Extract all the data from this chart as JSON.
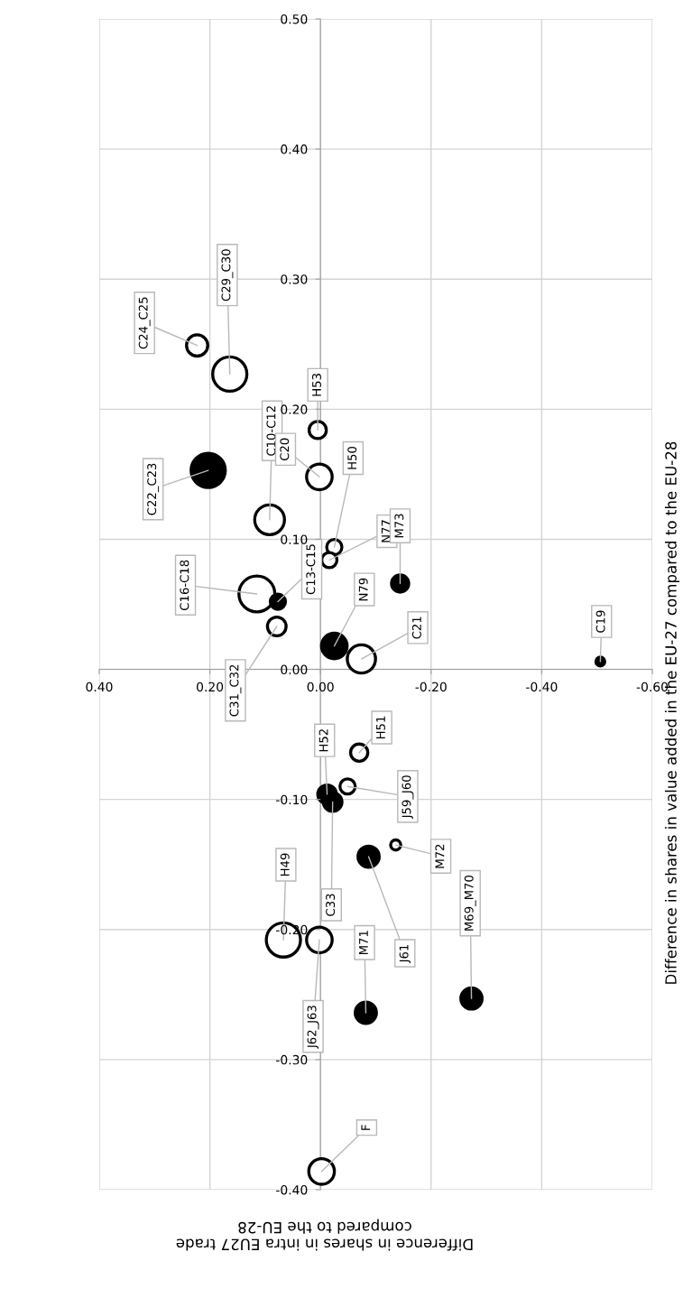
{
  "chart_data": {
    "type": "bubble",
    "xlabel": "Difference in shares in intra EU27 trade\ncompared to the EU-28",
    "ylabel": "Difference in shares in value added in the EU-27 compared to the EU-28",
    "xlim": [
      0.4,
      -0.6
    ],
    "ylim": [
      -0.4,
      0.5
    ],
    "xticks": [
      {
        "value": 0.4,
        "label": "0.40"
      },
      {
        "value": 0.2,
        "label": "0.20"
      },
      {
        "value": 0,
        "label": "0.00"
      },
      {
        "value": -0.2,
        "label": "-0.20"
      },
      {
        "value": -0.4,
        "label": "-0.40"
      },
      {
        "value": -0.6,
        "label": "-0.60"
      }
    ],
    "yticks": [
      {
        "value": -0.4,
        "label": "-0.40"
      },
      {
        "value": -0.3,
        "label": "-0.30"
      },
      {
        "value": -0.2,
        "label": "-0.20"
      },
      {
        "value": -0.1,
        "label": "-0.10"
      },
      {
        "value": 0,
        "label": "0.00"
      },
      {
        "value": 0.1,
        "label": "0.10"
      },
      {
        "value": 0.2,
        "label": "0.20"
      },
      {
        "value": 0.3,
        "label": "0.30"
      },
      {
        "value": 0.4,
        "label": "0.40"
      },
      {
        "value": 0.5,
        "label": "0.50"
      }
    ],
    "grid": true,
    "series": [
      {
        "color": "#ffffff",
        "x": [
          0.223,
          0.164,
          0.005,
          0.092,
          0.002,
          -0.025,
          -0.016,
          0.115,
          0.079,
          -0.074,
          -0.07,
          -0.049,
          -0.136,
          0.067,
          0.002,
          -0.002
        ],
        "values": [
          0.249,
          0.227,
          0.184,
          0.115,
          0.148,
          0.094,
          0.084,
          0.058,
          0.033,
          0.008,
          -0.064,
          -0.09,
          -0.135,
          -0.208,
          -0.208,
          -0.386
        ],
        "sizes": [
          0.35,
          0.91,
          0.23,
          0.69,
          0.51,
          0.18,
          0.18,
          1,
          0.27,
          0.62,
          0.23,
          0.18,
          0.08,
          0.91,
          0.51,
          0.51
        ],
        "value_labels": [
          "C24_C25",
          "C29_C30",
          "H53",
          "C10-C12",
          "C20",
          "H50",
          "N77",
          "C16-C18",
          "C31_C32",
          "C21",
          "H51",
          "J59_J60",
          "M72",
          "H49",
          "J62_J63",
          "F"
        ]
      },
      {
        "color": "#000000",
        "x": [
          0.203,
          -0.144,
          0.077,
          -0.025,
          -0.506,
          -0.012,
          -0.022,
          -0.087,
          -0.082,
          -0.273
        ],
        "values": [
          0.153,
          0.066,
          0.052,
          0.018,
          0.006,
          -0.096,
          -0.102,
          -0.144,
          -0.264,
          -0.253
        ],
        "sizes": [
          0.91,
          0.23,
          0.18,
          0.51,
          0.06,
          0.27,
          0.27,
          0.35,
          0.35,
          0.35
        ],
        "value_labels": [
          "C22_C23",
          "M73",
          "C13-C15",
          "N79",
          "C19",
          "H52",
          "C33",
          "J61",
          "M71",
          "M69_M70"
        ]
      }
    ]
  }
}
